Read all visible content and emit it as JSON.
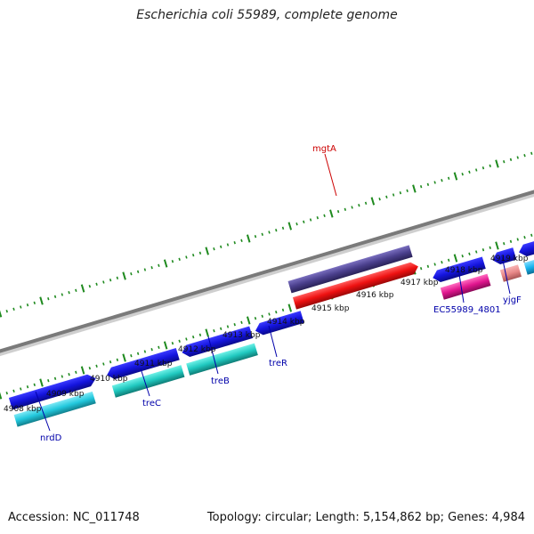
{
  "title": "Escherichia coli 55989, complete genome",
  "footer": {
    "accession": "Accession: NC_011748",
    "stats": "Topology: circular; Length: 5,154,862 bp; Genes: 4,984"
  },
  "colors": {
    "backbone": "#8a8a8a",
    "tick": "#1f8a1f",
    "gene_label": "#0000aa",
    "highlight_label": "#cc0000",
    "cds_blue": "#1414dd",
    "cds_cyan": "#22c8dd",
    "cds_teal": "#20c9c0",
    "cds_indigo": "#4a3f8c",
    "cds_red": "#ee1111",
    "cds_magenta": "#e0158e",
    "cds_pink": "#e88888",
    "cds_sky": "#17b3ee"
  },
  "kbp_labels": [
    "4908 kbp",
    "4909 kbp",
    "4910 kbp",
    "4911 kbp",
    "4912 kbp",
    "4913 kbp",
    "4914 kbp",
    "4915 kbp",
    "4916 kbp",
    "4917 kbp",
    "4918 kbp",
    "4919 kbp"
  ],
  "gene_labels": {
    "nrdD": "nrdD",
    "treC": "treC",
    "treB": "treB",
    "treR": "treR",
    "mgtA": "mgtA",
    "ec55989": "EC55989_4801",
    "yjgF": "yjgF"
  }
}
